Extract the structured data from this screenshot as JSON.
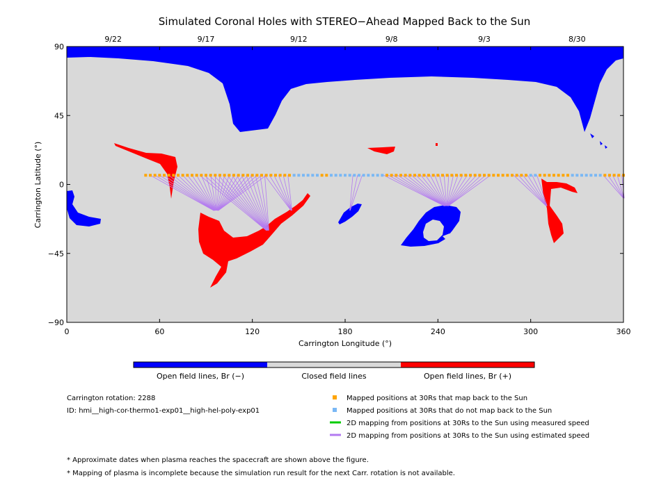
{
  "chart_data": {
    "type": "scatter",
    "title": "Simulated Coronal Holes with STEREO−Ahead Mapped Back to the Sun",
    "xlabel": "Carrington Longitude (°)",
    "ylabel": "Carrington Latitude (°)",
    "xlim": [
      0,
      360
    ],
    "ylim": [
      -90,
      90
    ],
    "x_ticks": [
      0,
      60,
      120,
      180,
      240,
      300,
      360
    ],
    "y_ticks": [
      -90,
      -45,
      0,
      45,
      90
    ],
    "y_tick_labels": [
      "−90",
      "−45",
      "0",
      "45",
      "90"
    ],
    "top_dates": [
      {
        "label": "9/22",
        "lon": 30
      },
      {
        "label": "9/17",
        "lon": 90
      },
      {
        "label": "9/12",
        "lon": 150
      },
      {
        "label": "9/8",
        "lon": 210
      },
      {
        "label": "9/3",
        "lon": 270
      },
      {
        "label": "8/30",
        "lon": 330
      }
    ],
    "colors": {
      "open_negative": "#0000ff",
      "closed": "#d9d9d9",
      "open_positive": "#ff0000",
      "mapped": "#ffa500",
      "not_mapped": "#7ab8f5",
      "measured_line": "#00cc00",
      "estimated_line": "#b37af0"
    },
    "colorbar_labels": [
      "Open field lines, Br (−)",
      "Closed field lines",
      "Open field lines, Br (+)"
    ],
    "spacecraft_track": {
      "lat": 6,
      "lon_start": 51,
      "lon_end": 360,
      "not_mapped_ranges": [
        [
          145,
          162
        ],
        [
          170,
          205
        ],
        [
          298,
          304
        ],
        [
          327,
          347
        ]
      ]
    },
    "mapping_fans": [
      {
        "lon_start": 54,
        "lon_end": 131,
        "foot_lon": 95,
        "foot_lat": -17
      },
      {
        "lon_start": 86,
        "lon_end": 128,
        "foot_lon": 129,
        "foot_lat": -30
      },
      {
        "lon_start": 128,
        "lon_end": 145,
        "foot_lon": 145,
        "foot_lat": -17
      },
      {
        "lon_start": 185,
        "lon_end": 192,
        "foot_lon": 183,
        "foot_lat": -17
      },
      {
        "lon_start": 205,
        "lon_end": 276,
        "foot_lon": 244,
        "foot_lat": -14
      },
      {
        "lon_start": 289,
        "lon_end": 304,
        "foot_lon": 310,
        "foot_lat": -14
      },
      {
        "lon_start": 347,
        "lon_end": 360,
        "foot_lon": 360,
        "foot_lat": -9
      }
    ],
    "info": {
      "rotation": "Carrington rotation: 2288",
      "id": "ID: hmi__high-cor-thermo1-exp01__high-hel-poly-exp01"
    },
    "legend": [
      {
        "label": "Mapped positions at 30Rs that map back to the Sun",
        "kind": "square",
        "color": "#ffa500"
      },
      {
        "label": "Mapped positions at 30Rs that do not map back to the Sun",
        "kind": "square",
        "color": "#7ab8f5"
      },
      {
        "label": "2D mapping from positions at 30Rs to the Sun using measured speed",
        "kind": "line",
        "color": "#00cc00"
      },
      {
        "label": "2D mapping from positions at 30Rs to the Sun using estimated speed",
        "kind": "line",
        "color": "#b37af0"
      }
    ],
    "notes": [
      "* Approximate dates when plasma reaches the spacecraft are shown above the figure.",
      "* Mapping of plasma is incomplete because the simulation run result for the next Carr. rotation is not available."
    ]
  }
}
